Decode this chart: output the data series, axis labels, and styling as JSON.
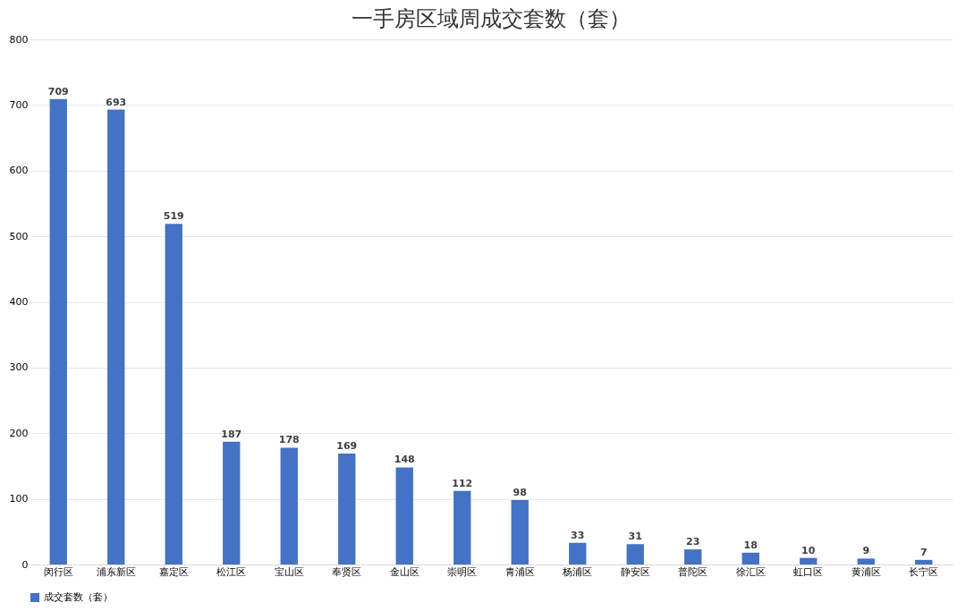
{
  "chart_data": {
    "type": "bar",
    "title": "一手房区域周成交套数（套）",
    "categories": [
      "闵行区",
      "浦东新区",
      "嘉定区",
      "松江区",
      "宝山区",
      "奉贤区",
      "金山区",
      "崇明区",
      "青浦区",
      "杨浦区",
      "静安区",
      "普陀区",
      "徐汇区",
      "虹口区",
      "黄浦区",
      "长宁区"
    ],
    "series": [
      {
        "name": "成交套数（套）",
        "color": "#4472c4",
        "values": [
          709,
          693,
          519,
          187,
          178,
          169,
          148,
          112,
          98,
          33,
          31,
          23,
          18,
          10,
          9,
          7
        ]
      }
    ],
    "ylim": [
      0,
      800
    ],
    "yticks": [
      0,
      100,
      200,
      300,
      400,
      500,
      600,
      700,
      800
    ],
    "grid": "y",
    "legend": "bottom",
    "data_labels": true
  }
}
